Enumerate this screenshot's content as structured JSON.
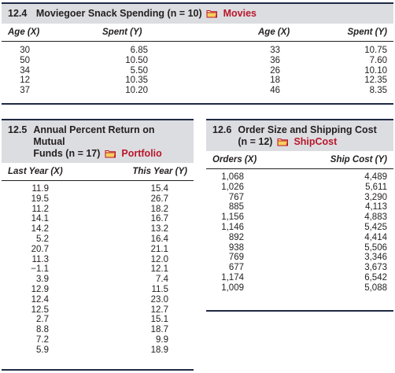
{
  "table_12_4": {
    "number": "12.4",
    "title": "Moviegoer Snack Spending (n = 10)",
    "file": "Movies",
    "col_age": "Age (X)",
    "col_spent": "Spent (Y)",
    "left_rows": [
      {
        "age": "30",
        "spent": "6.85"
      },
      {
        "age": "50",
        "spent": "10.50"
      },
      {
        "age": "34",
        "spent": "5.50"
      },
      {
        "age": "12",
        "spent": "10.35"
      },
      {
        "age": "37",
        "spent": "10.20"
      }
    ],
    "right_rows": [
      {
        "age": "33",
        "spent": "10.75"
      },
      {
        "age": "36",
        "spent": "7.60"
      },
      {
        "age": "26",
        "spent": "10.10"
      },
      {
        "age": "18",
        "spent": "12.35"
      },
      {
        "age": "46",
        "spent": "8.35"
      }
    ]
  },
  "table_12_5": {
    "number": "12.5",
    "title_line1": "Annual Percent Return on Mutual",
    "title_line2": "Funds (n = 17)",
    "file": "Portfolio",
    "col_last": "Last Year (X)",
    "col_this": "This Year (Y)",
    "rows": [
      {
        "last": "11.9",
        "this": "15.4"
      },
      {
        "last": "19.5",
        "this": "26.7"
      },
      {
        "last": "11.2",
        "this": "18.2"
      },
      {
        "last": "14.1",
        "this": "16.7"
      },
      {
        "last": "14.2",
        "this": "13.2"
      },
      {
        "last": "5.2",
        "this": "16.4"
      },
      {
        "last": "20.7",
        "this": "21.1"
      },
      {
        "last": "11.3",
        "this": "12.0"
      },
      {
        "last": "−1.1",
        "this": "12.1"
      },
      {
        "last": "3.9",
        "this": "7.4"
      },
      {
        "last": "12.9",
        "this": "11.5"
      },
      {
        "last": "12.4",
        "this": "23.0"
      },
      {
        "last": "12.5",
        "this": "12.7"
      },
      {
        "last": "2.7",
        "this": "15.1"
      },
      {
        "last": "8.8",
        "this": "18.7"
      },
      {
        "last": "7.2",
        "this": "9.9"
      },
      {
        "last": "5.9",
        "this": "18.9"
      }
    ]
  },
  "table_12_6": {
    "number": "12.6",
    "title_line1": "Order Size and Shipping Cost",
    "title_line2": "(n = 12)",
    "file": "ShipCost",
    "col_orders": "Orders (X)",
    "col_cost": "Ship Cost (Y)",
    "rows": [
      {
        "orders": "1,068",
        "cost": "4,489"
      },
      {
        "orders": "1,026",
        "cost": "5,611"
      },
      {
        "orders": "767",
        "cost": "3,290"
      },
      {
        "orders": "885",
        "cost": "4,113"
      },
      {
        "orders": "1,156",
        "cost": "4,883"
      },
      {
        "orders": "1,146",
        "cost": "5,425"
      },
      {
        "orders": "892",
        "cost": "4,414"
      },
      {
        "orders": "938",
        "cost": "5,506"
      },
      {
        "orders": "769",
        "cost": "3,346"
      },
      {
        "orders": "677",
        "cost": "3,673"
      },
      {
        "orders": "1,174",
        "cost": "6,542"
      },
      {
        "orders": "1,009",
        "cost": "5,088"
      }
    ]
  },
  "colors": {
    "file_link": "#b8172a",
    "title_bg": "#dcdde1",
    "rule": "#1f2a44"
  },
  "icons": {
    "file": "folder-icon"
  }
}
